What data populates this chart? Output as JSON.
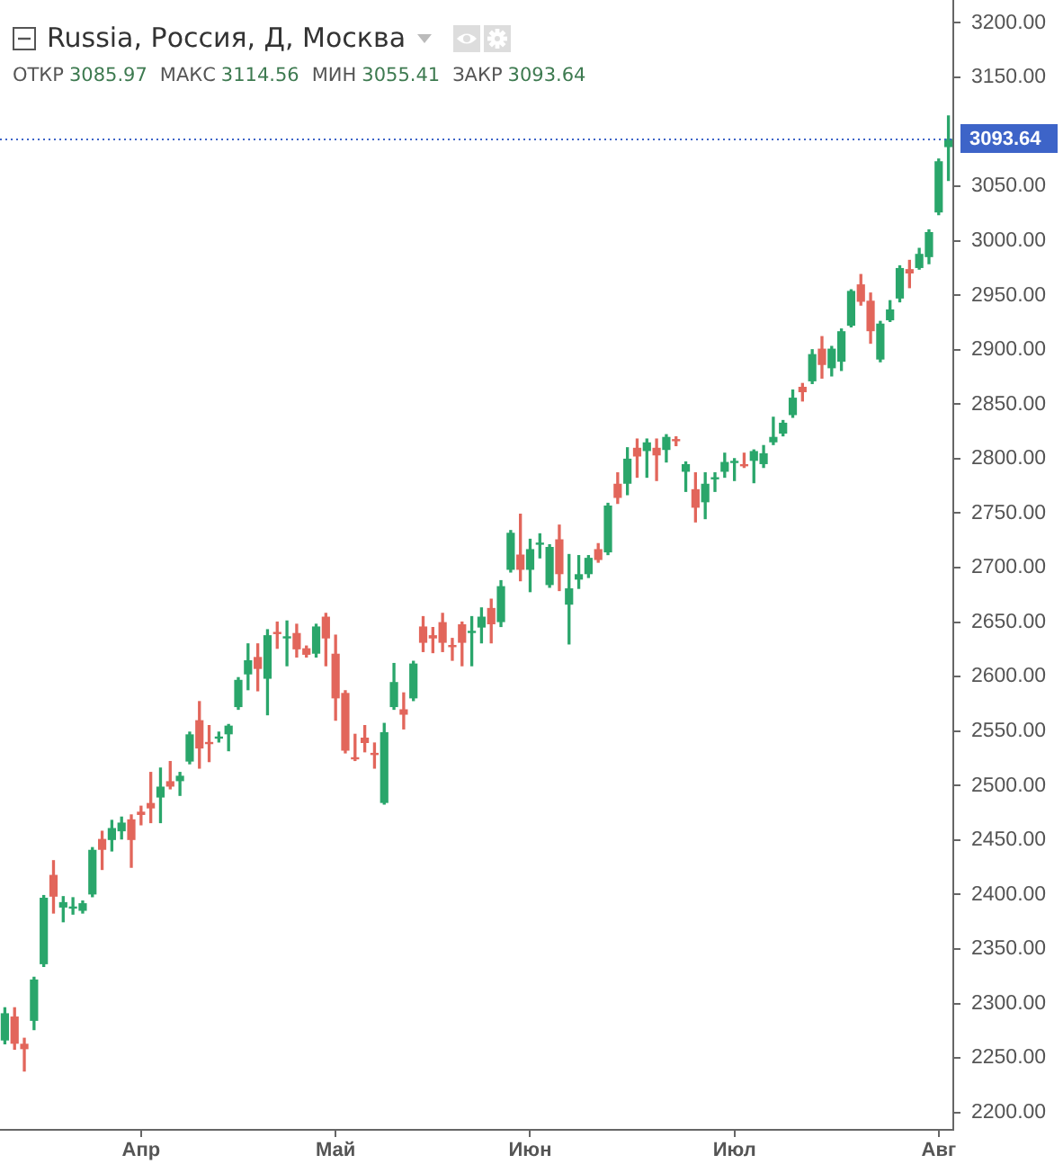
{
  "chart_data": {
    "type": "candlestick",
    "title": "Russia, Россия, Д, Москва",
    "subtitle": "ОТКР 3085.97 МАКС 3114.56 МИН 3055.41 ЗАКР 3093.64",
    "categories": [
      null,
      null,
      null,
      null,
      null,
      null,
      null,
      null,
      null,
      null,
      null,
      null,
      null,
      null,
      "Апр",
      null,
      null,
      null,
      null,
      null,
      null,
      null,
      null,
      null,
      null,
      null,
      null,
      null,
      null,
      null,
      null,
      null,
      null,
      null,
      "Май",
      null,
      null,
      null,
      null,
      null,
      null,
      null,
      null,
      null,
      null,
      null,
      null,
      null,
      null,
      null,
      null,
      null,
      null,
      null,
      "Июн",
      null,
      null,
      null,
      null,
      null,
      null,
      null,
      null,
      null,
      null,
      null,
      null,
      null,
      null,
      null,
      null,
      null,
      null,
      null,
      null,
      "Июл",
      null,
      null,
      null,
      null,
      null,
      null,
      null,
      null,
      null,
      null,
      null,
      null,
      null,
      null,
      null,
      null,
      null,
      null,
      null,
      null,
      "Авг",
      null
    ],
    "ohlc": [
      [
        2266,
        2296,
        2263,
        2291
      ],
      [
        2288,
        2296,
        2258,
        2263
      ],
      [
        2263,
        2268,
        2238,
        2258
      ],
      [
        2284,
        2324,
        2276,
        2322
      ],
      [
        2336,
        2399,
        2334,
        2397
      ],
      [
        2418,
        2431,
        2383,
        2398
      ],
      [
        2388,
        2398,
        2375,
        2393
      ],
      [
        2387,
        2397,
        2382,
        2389
      ],
      [
        2385,
        2394,
        2383,
        2392
      ],
      [
        2400,
        2443,
        2398,
        2441
      ],
      [
        2451,
        2458,
        2423,
        2441
      ],
      [
        2450,
        2468,
        2440,
        2461
      ],
      [
        2458,
        2471,
        2451,
        2466
      ],
      [
        2469,
        2473,
        2425,
        2450
      ],
      [
        2476,
        2481,
        2464,
        2473
      ],
      [
        2484,
        2512,
        2466,
        2479
      ],
      [
        2489,
        2516,
        2466,
        2499
      ],
      [
        2504,
        2522,
        2497,
        2499
      ],
      [
        2504,
        2512,
        2491,
        2509
      ],
      [
        2522,
        2549,
        2520,
        2547
      ],
      [
        2560,
        2577,
        2516,
        2534
      ],
      [
        2540,
        2555,
        2522,
        2538
      ],
      [
        2543,
        2549,
        2540,
        2545
      ],
      [
        2547,
        2556,
        2532,
        2555
      ],
      [
        2572,
        2599,
        2570,
        2597
      ],
      [
        2602,
        2630,
        2588,
        2615
      ],
      [
        2618,
        2630,
        2587,
        2607
      ],
      [
        2598,
        2643,
        2565,
        2638
      ],
      [
        2641,
        2650,
        2626,
        2639
      ],
      [
        2635,
        2651,
        2610,
        2637
      ],
      [
        2640,
        2648,
        2618,
        2625
      ],
      [
        2626,
        2628,
        2618,
        2620
      ],
      [
        2621,
        2648,
        2618,
        2646
      ],
      [
        2655,
        2658,
        2610,
        2635
      ],
      [
        2621,
        2638,
        2560,
        2580
      ],
      [
        2585,
        2587,
        2530,
        2532
      ],
      [
        2526,
        2547,
        2523,
        2524
      ],
      [
        2544,
        2555,
        2531,
        2539
      ],
      [
        2530,
        2539,
        2516,
        2528
      ],
      [
        2484,
        2557,
        2483,
        2549
      ],
      [
        2572,
        2612,
        2570,
        2595
      ],
      [
        2570,
        2585,
        2552,
        2565
      ],
      [
        2580,
        2614,
        2578,
        2612
      ],
      [
        2646,
        2655,
        2623,
        2631
      ],
      [
        2638,
        2645,
        2622,
        2635
      ],
      [
        2650,
        2658,
        2623,
        2631
      ],
      [
        2629,
        2635,
        2615,
        2627
      ],
      [
        2648,
        2650,
        2610,
        2631
      ],
      [
        2640,
        2655,
        2610,
        2642
      ],
      [
        2645,
        2663,
        2631,
        2655
      ],
      [
        2663,
        2671,
        2631,
        2648
      ],
      [
        2650,
        2688,
        2646,
        2683
      ],
      [
        2698,
        2734,
        2696,
        2732
      ],
      [
        2712,
        2749,
        2688,
        2698
      ],
      [
        2698,
        2726,
        2678,
        2717
      ],
      [
        2721,
        2731,
        2709,
        2723
      ],
      [
        2684,
        2721,
        2682,
        2719
      ],
      [
        2726,
        2739,
        2679,
        2694
      ],
      [
        2666,
        2712,
        2630,
        2681
      ],
      [
        2689,
        2711,
        2681,
        2694
      ],
      [
        2694,
        2711,
        2691,
        2709
      ],
      [
        2717,
        2722,
        2705,
        2707
      ],
      [
        2714,
        2759,
        2712,
        2757
      ],
      [
        2777,
        2787,
        2759,
        2764
      ],
      [
        2777,
        2810,
        2767,
        2800
      ],
      [
        2810,
        2818,
        2783,
        2802
      ],
      [
        2807,
        2818,
        2783,
        2815
      ],
      [
        2810,
        2818,
        2780,
        2803
      ],
      [
        2808,
        2822,
        2797,
        2820
      ],
      [
        2818,
        2820,
        2812,
        2816
      ],
      [
        2788,
        2797,
        2770,
        2795
      ],
      [
        2772,
        2787,
        2742,
        2755
      ],
      [
        2760,
        2787,
        2745,
        2777
      ],
      [
        2781,
        2787,
        2770,
        2783
      ],
      [
        2788,
        2805,
        2783,
        2797
      ],
      [
        2796,
        2800,
        2780,
        2798
      ],
      [
        2795,
        2805,
        2792,
        2793
      ],
      [
        2798,
        2808,
        2778,
        2807
      ],
      [
        2795,
        2812,
        2792,
        2805
      ],
      [
        2815,
        2838,
        2813,
        2820
      ],
      [
        2823,
        2835,
        2821,
        2833
      ],
      [
        2840,
        2863,
        2838,
        2856
      ],
      [
        2866,
        2869,
        2853,
        2861
      ],
      [
        2871,
        2900,
        2869,
        2896
      ],
      [
        2901,
        2912,
        2874,
        2886
      ],
      [
        2883,
        2903,
        2876,
        2901
      ],
      [
        2889,
        2919,
        2881,
        2917
      ],
      [
        2922,
        2955,
        2921,
        2954
      ],
      [
        2960,
        2969,
        2941,
        2944
      ],
      [
        2945,
        2952,
        2906,
        2917
      ],
      [
        2891,
        2926,
        2889,
        2924
      ],
      [
        2927,
        2945,
        2926,
        2937
      ],
      [
        2947,
        2977,
        2944,
        2975
      ],
      [
        2974,
        2982,
        2957,
        2970
      ],
      [
        2975,
        2993,
        2974,
        2988
      ],
      [
        2985,
        3010,
        2979,
        3008
      ],
      [
        3026,
        3075,
        3024,
        3073
      ],
      [
        3085.97,
        3114.56,
        3055.41,
        3093.64
      ]
    ],
    "colors": [
      "#2aa66b",
      "#e2665b",
      "#e2665b",
      "#2aa66b",
      "#2aa66b",
      "#e2665b",
      "#2aa66b",
      "#2aa66b",
      "#2aa66b",
      "#2aa66b",
      "#e2665b",
      "#2aa66b",
      "#2aa66b",
      "#e2665b",
      "#e2665b",
      "#e2665b",
      "#2aa66b",
      "#e2665b",
      "#2aa66b",
      "#2aa66b",
      "#e2665b",
      "#e2665b",
      "#2aa66b",
      "#2aa66b",
      "#2aa66b",
      "#2aa66b",
      "#e2665b",
      "#2aa66b",
      "#e2665b",
      "#2aa66b",
      "#e2665b",
      "#e2665b",
      "#2aa66b",
      "#e2665b",
      "#e2665b",
      "#e2665b",
      "#e2665b",
      "#e2665b",
      "#e2665b",
      "#2aa66b",
      "#2aa66b",
      "#e2665b",
      "#2aa66b",
      "#e2665b",
      "#e2665b",
      "#e2665b",
      "#e2665b",
      "#e2665b",
      "#2aa66b",
      "#2aa66b",
      "#e2665b",
      "#2aa66b",
      "#2aa66b",
      "#e2665b",
      "#2aa66b",
      "#2aa66b",
      "#2aa66b",
      "#e2665b",
      "#2aa66b",
      "#2aa66b",
      "#2aa66b",
      "#e2665b",
      "#2aa66b",
      "#e2665b",
      "#2aa66b",
      "#e2665b",
      "#2aa66b",
      "#e2665b",
      "#2aa66b",
      "#e2665b",
      "#2aa66b",
      "#e2665b",
      "#2aa66b",
      "#2aa66b",
      "#2aa66b",
      "#2aa66b",
      "#e2665b",
      "#2aa66b",
      "#2aa66b",
      "#2aa66b",
      "#2aa66b",
      "#2aa66b",
      "#e2665b",
      "#2aa66b",
      "#e2665b",
      "#2aa66b",
      "#2aa66b",
      "#2aa66b",
      "#e2665b",
      "#e2665b",
      "#2aa66b",
      "#2aa66b",
      "#2aa66b",
      "#e2665b",
      "#2aa66b",
      "#2aa66b",
      "#2aa66b",
      "#2aa66b"
    ],
    "ylim": [
      2184,
      3221
    ],
    "yticks": [
      {
        "value": 2200,
        "label": "2200.00"
      },
      {
        "value": 2250,
        "label": "2250.00"
      },
      {
        "value": 2300,
        "label": "2300.00"
      },
      {
        "value": 2350,
        "label": "2350.00"
      },
      {
        "value": 2400,
        "label": "2400.00"
      },
      {
        "value": 2450,
        "label": "2450.00"
      },
      {
        "value": 2500,
        "label": "2500.00"
      },
      {
        "value": 2550,
        "label": "2550.00"
      },
      {
        "value": 2600,
        "label": "2600.00"
      },
      {
        "value": 2650,
        "label": "2650.00"
      },
      {
        "value": 2700,
        "label": "2700.00"
      },
      {
        "value": 2750,
        "label": "2750.00"
      },
      {
        "value": 2800,
        "label": "2800.00"
      },
      {
        "value": 2850,
        "label": "2850.00"
      },
      {
        "value": 2900,
        "label": "2900.00"
      },
      {
        "value": 2950,
        "label": "2950.00"
      },
      {
        "value": 3000,
        "label": "3000.00"
      },
      {
        "value": 3050,
        "label": "3050.00"
      },
      {
        "value": 3150,
        "label": "3150.00"
      },
      {
        "value": 3200,
        "label": "3200.00"
      }
    ],
    "ref_lines": [
      {
        "axis": "y",
        "value": 3093.64,
        "label": "3093.64",
        "color": "#3d64c8",
        "line_style": "dotted"
      }
    ]
  }
}
